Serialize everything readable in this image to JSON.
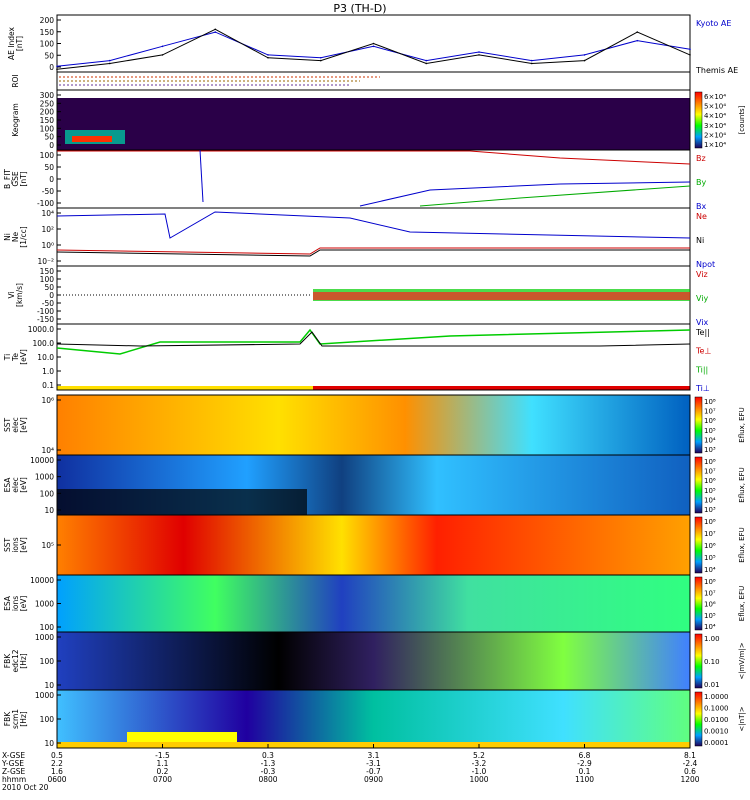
{
  "title": "P3 (TH-D)",
  "date": "2010 Oct 20",
  "x_ticks": [
    "0600",
    "0700",
    "0800",
    "0900",
    "1000",
    "1100",
    "1200"
  ],
  "orbit_rows": [
    {
      "label": "X-GSE",
      "values": [
        "0.5",
        "-1.5",
        "0.3",
        "3.1",
        "5.2",
        "6.8",
        "8.1"
      ]
    },
    {
      "label": "Y-GSE",
      "values": [
        "2.2",
        "1.1",
        "-1.3",
        "-3.1",
        "-3.2",
        "-2.9",
        "-2.4"
      ]
    },
    {
      "label": "Z-GSE",
      "values": [
        "1.6",
        "0.2",
        "-0.3",
        "-0.7",
        "-1.0",
        "0.1",
        "0.6"
      ]
    },
    {
      "label": "hhmm",
      "values": []
    }
  ],
  "panels": [
    {
      "id": "ae",
      "ylabel": [
        "AE Index",
        "[nT]"
      ],
      "ticks": [
        "200",
        "150",
        "100",
        "50",
        "0"
      ],
      "legend": [
        {
          "text": "Kyoto AE",
          "color": "#0000cc"
        },
        {
          "text": "Themis AE",
          "color": "#000000"
        }
      ]
    },
    {
      "id": "roi",
      "ylabel": [
        "ROI"
      ],
      "ticks": [],
      "legend": []
    },
    {
      "id": "keogram",
      "ylabel": [
        "Keogram"
      ],
      "ticks": [
        "300",
        "250",
        "200",
        "150",
        "100",
        "50",
        "0"
      ],
      "colorbar": {
        "labels": [
          "6×10⁴",
          "5×10⁴",
          "4×10⁴",
          "3×10⁴",
          "2×10⁴",
          "1×10⁴"
        ],
        "unit": "[counts]"
      }
    },
    {
      "id": "bfield",
      "ylabel": [
        "B_FIT",
        "GSE",
        "[nT]"
      ],
      "ticks": [
        "100",
        "50",
        "0",
        "-50",
        "-100"
      ],
      "legend": [
        {
          "text": "Bz",
          "color": "#cc0000"
        },
        {
          "text": "By",
          "color": "#00aa00"
        },
        {
          "text": "Bx",
          "color": "#0000cc"
        }
      ]
    },
    {
      "id": "density",
      "ylabel": [
        "Ni",
        "Ne",
        "[1/cc]"
      ],
      "ticks": [
        "10⁴",
        "10²",
        "10⁰",
        "10⁻²"
      ],
      "legend": [
        {
          "text": "Ne",
          "color": "#cc0000"
        },
        {
          "text": "Ni",
          "color": "#000000"
        },
        {
          "text": "Npot",
          "color": "#0000cc"
        }
      ]
    },
    {
      "id": "velocity",
      "ylabel": [
        "Vi",
        "[km/s]"
      ],
      "ticks": [
        "150",
        "100",
        "50",
        "0",
        "-50",
        "-100",
        "-150"
      ],
      "legend": [
        {
          "text": "Viz",
          "color": "#cc0000"
        },
        {
          "text": "Viy",
          "color": "#00aa00"
        },
        {
          "text": "Vix",
          "color": "#0000cc"
        }
      ]
    },
    {
      "id": "temp",
      "ylabel": [
        "Ti",
        "Te",
        "[eV]"
      ],
      "ticks": [
        "1000.0",
        "100.0",
        "10.0",
        "1.0",
        "0.1"
      ],
      "legend": [
        {
          "text": "Te||",
          "color": "#000000"
        },
        {
          "text": "Te⊥",
          "color": "#cc0000"
        },
        {
          "text": "Ti||",
          "color": "#00aa00"
        },
        {
          "text": "Ti⊥",
          "color": "#0000cc"
        }
      ]
    },
    {
      "id": "sst_e",
      "ylabel": [
        "SST",
        "elec",
        "[eV]"
      ],
      "ticks": [
        "10⁶",
        "10⁴"
      ],
      "colorbar": {
        "labels": [
          "10⁸",
          "10⁷",
          "10⁶",
          "10⁵",
          "10⁴",
          "10³"
        ],
        "unit": "Eflux, EFU"
      }
    },
    {
      "id": "esa_e",
      "ylabel": [
        "ESA",
        "elec",
        "[eV]"
      ],
      "ticks": [
        "10000",
        "1000",
        "100",
        "10"
      ],
      "colorbar": {
        "labels": [
          "10⁸",
          "10⁷",
          "10⁶",
          "10⁵",
          "10⁴",
          "10³"
        ],
        "unit": "Eflux, EFU"
      }
    },
    {
      "id": "sst_i",
      "ylabel": [
        "SST",
        "ions",
        "[eV]"
      ],
      "ticks": [
        "10⁵"
      ],
      "colorbar": {
        "labels": [
          "10⁸",
          "10⁷",
          "10⁶",
          "10⁵",
          "10⁴"
        ],
        "unit": "Eflux, EFU"
      }
    },
    {
      "id": "esa_i",
      "ylabel": [
        "ESA",
        "ions",
        "[eV]"
      ],
      "ticks": [
        "10000",
        "1000",
        "100"
      ],
      "colorbar": {
        "labels": [
          "10⁸",
          "10⁷",
          "10⁶",
          "10⁵",
          "10⁴"
        ],
        "unit": "Eflux, EFU"
      }
    },
    {
      "id": "fbk_e",
      "ylabel": [
        "FBK",
        "edc12",
        "[Hz]"
      ],
      "ticks": [
        "1000",
        "100",
        "10"
      ],
      "colorbar": {
        "labels": [
          "1.00",
          "0.10",
          "0.01"
        ],
        "unit": "<|mV/m|>"
      }
    },
    {
      "id": "fbk_b",
      "ylabel": [
        "FBK",
        "scm1",
        "[Hz]"
      ],
      "ticks": [
        "1000",
        "100",
        "10"
      ],
      "colorbar": {
        "labels": [
          "1.0000",
          "0.1000",
          "0.0100",
          "0.0010",
          "0.0001"
        ],
        "unit": "<|nT|>"
      }
    }
  ],
  "chart_data": {
    "type": "line",
    "title": "P3 (TH-D)",
    "x": [
      "0600",
      "0630",
      "0700",
      "0730",
      "0800",
      "0830",
      "0900",
      "0930",
      "1000",
      "1030",
      "1100",
      "1130",
      "1200"
    ],
    "series": [
      {
        "name": "Kyoto AE",
        "values": [
          20,
          40,
          90,
          140,
          60,
          50,
          90,
          40,
          70,
          40,
          60,
          110,
          80
        ]
      },
      {
        "name": "Themis AE",
        "values": [
          10,
          30,
          60,
          150,
          50,
          40,
          100,
          30,
          60,
          30,
          40,
          140,
          60
        ]
      }
    ],
    "ylabel": "AE Index [nT]",
    "ylim": [
      0,
      200
    ]
  }
}
